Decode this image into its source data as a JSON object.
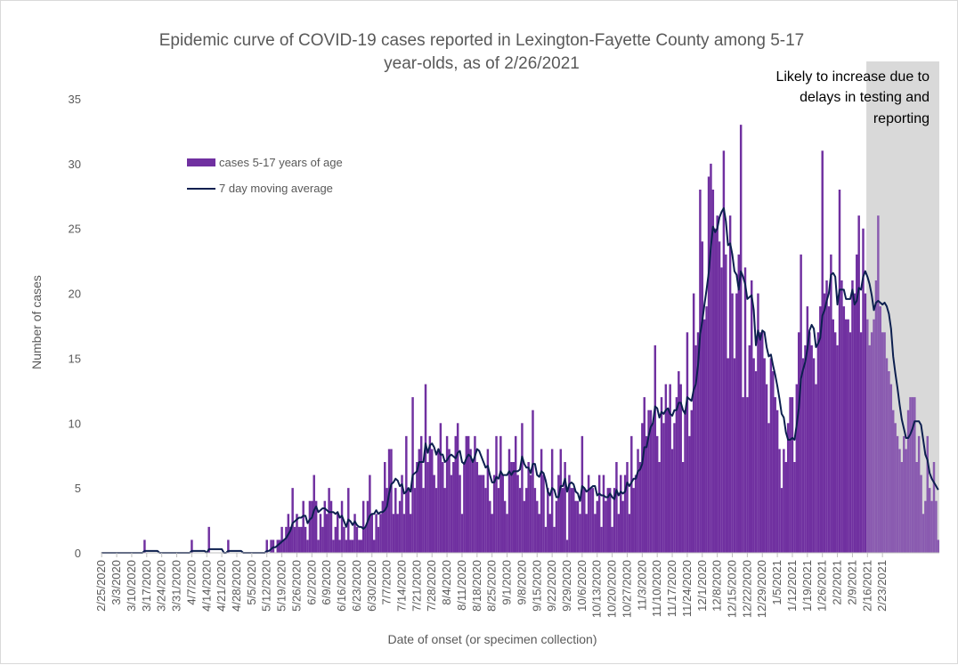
{
  "chart_data": {
    "type": "bar",
    "title_lines": [
      "Epidemic curve of COVID-19 cases reported in Lexington-Fayette County among 5-17",
      "year-olds, as of 2/26/2021"
    ],
    "xlabel": "Date of onset (or specimen collection)",
    "ylabel": "Number of cases",
    "ylim": [
      0,
      35
    ],
    "yticks": [
      0,
      5,
      10,
      15,
      20,
      25,
      30,
      35
    ],
    "x_start": "2/25/2020",
    "x_end": "2/26/2021",
    "x_tick_labels": [
      "2/25/2020",
      "3/3/2020",
      "3/10/2020",
      "3/17/2020",
      "3/24/2020",
      "3/31/2020",
      "4/7/2020",
      "4/14/2020",
      "4/21/2020",
      "4/28/2020",
      "5/5/2020",
      "5/12/2020",
      "5/19/2020",
      "5/26/2020",
      "6/2/2020",
      "6/9/2020",
      "6/16/2020",
      "6/23/2020",
      "6/30/2020",
      "7/7/2020",
      "7/14/2020",
      "7/21/2020",
      "7/28/2020",
      "8/4/2020",
      "8/11/2020",
      "8/18/2020",
      "8/25/2020",
      "9/1/2020",
      "9/8/2020",
      "9/15/2020",
      "9/22/2020",
      "9/29/2020",
      "10/6/2020",
      "10/13/2020",
      "10/20/2020",
      "10/27/2020",
      "11/3/2020",
      "11/10/2020",
      "11/17/2020",
      "11/24/2020",
      "12/1/2020",
      "12/8/2020",
      "12/15/2020",
      "12/22/2020",
      "12/29/2020",
      "1/5/2021",
      "1/12/2021",
      "1/19/2021",
      "1/26/2021",
      "2/2/2021",
      "2/9/2021",
      "2/16/2021",
      "2/23/2021"
    ],
    "grid": false,
    "legend_placement": "top-left",
    "series": [
      {
        "name": "cases 5-17 years of age",
        "kind": "bar",
        "color": "#7030a0",
        "values": [
          0,
          0,
          0,
          0,
          0,
          0,
          0,
          0,
          0,
          0,
          0,
          0,
          0,
          0,
          0,
          0,
          0,
          0,
          0,
          0,
          1,
          0,
          0,
          0,
          0,
          0,
          0,
          0,
          0,
          0,
          0,
          0,
          0,
          0,
          0,
          0,
          0,
          0,
          0,
          0,
          0,
          0,
          1,
          0,
          0,
          0,
          0,
          0,
          0,
          0,
          2,
          0,
          0,
          0,
          0,
          0,
          0,
          0,
          0,
          1,
          0,
          0,
          0,
          0,
          0,
          0,
          0,
          0,
          0,
          0,
          0,
          0,
          0,
          0,
          0,
          0,
          0,
          1,
          0,
          1,
          1,
          0,
          1,
          1,
          2,
          1,
          2,
          3,
          2,
          5,
          2,
          3,
          2,
          2,
          4,
          2,
          1,
          4,
          4,
          6,
          4,
          1,
          3,
          2,
          4,
          3,
          5,
          4,
          1,
          2,
          3,
          1,
          4,
          2,
          1,
          5,
          1,
          1,
          3,
          2,
          1,
          1,
          4,
          2,
          4,
          6,
          3,
          1,
          3,
          2,
          3,
          4,
          7,
          5,
          8,
          8,
          3,
          5,
          3,
          4,
          6,
          3,
          9,
          5,
          3,
          12,
          5,
          7,
          8,
          9,
          5,
          13,
          7,
          9,
          8,
          6,
          5,
          8,
          10,
          7,
          5,
          9,
          8,
          6,
          7,
          9,
          10,
          6,
          3,
          7,
          9,
          9,
          8,
          7,
          9,
          7,
          6,
          6,
          6,
          5,
          8,
          4,
          3,
          6,
          9,
          5,
          9,
          6,
          4,
          3,
          8,
          7,
          7,
          9,
          6,
          5,
          10,
          4,
          5,
          7,
          6,
          11,
          5,
          4,
          3,
          8,
          6,
          2,
          5,
          3,
          8,
          2,
          4,
          6,
          8,
          5,
          7,
          1,
          6,
          5,
          5,
          4,
          4,
          3,
          9,
          5,
          3,
          6,
          5,
          5,
          3,
          4,
          6,
          2,
          6,
          4,
          5,
          5,
          2,
          5,
          7,
          3,
          6,
          4,
          6,
          7,
          3,
          9,
          5,
          6,
          8,
          7,
          10,
          12,
          9,
          11,
          11,
          10,
          16,
          9,
          7,
          12,
          10,
          13,
          11,
          13,
          8,
          10,
          12,
          14,
          13,
          7,
          11,
          17,
          9,
          11,
          20,
          16,
          17,
          28,
          24,
          18,
          19,
          29,
          30,
          28,
          25,
          26,
          24,
          22,
          31,
          23,
          15,
          26,
          20,
          15,
          20,
          23,
          33,
          12,
          22,
          12,
          16,
          21,
          15,
          14,
          20,
          17,
          17,
          15,
          13,
          10,
          15,
          14,
          12,
          11,
          8,
          5,
          8,
          7,
          10,
          12,
          12,
          7,
          13,
          17,
          23,
          15,
          16,
          19,
          17,
          16,
          15,
          13,
          17,
          19,
          31,
          20,
          21,
          19,
          23,
          18,
          17,
          16,
          28,
          21,
          19,
          18,
          18,
          17,
          21,
          20,
          23,
          26,
          17,
          25,
          20,
          18,
          16,
          17,
          18,
          21,
          26,
          19,
          17,
          17,
          15,
          14,
          13,
          11,
          10,
          9,
          8,
          7,
          9,
          8,
          11,
          12,
          12,
          12,
          7,
          9,
          6,
          3,
          4,
          9,
          5,
          4,
          7,
          4,
          1
        ]
      },
      {
        "name": "7 day moving average",
        "kind": "line",
        "color": "#0c1f4f",
        "window": 7
      }
    ]
  },
  "annotation": {
    "lines": [
      "Likely to increase due to",
      "delays in testing and",
      "reporting"
    ],
    "shade_start": "2/16/2021",
    "shade_color": "#d9d9d9"
  }
}
